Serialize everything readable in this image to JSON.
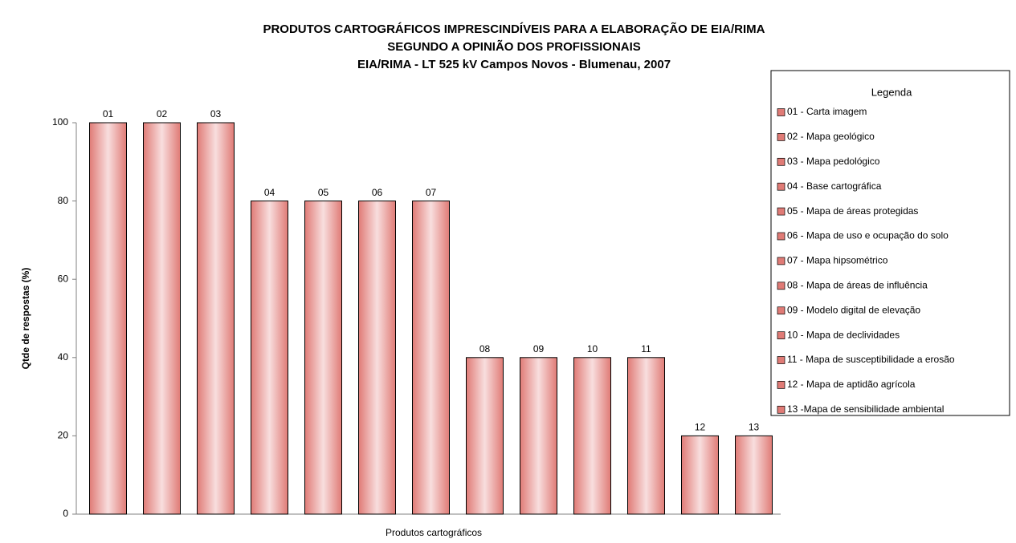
{
  "chart_data": {
    "type": "bar",
    "title": "PRODUTOS CARTOGRÁFICOS IMPRESCINDÍVEIS PARA A ELABORAÇÃO DE EIA/RIMA",
    "subtitle": "SEGUNDO A OPINIÃO DOS PROFISSIONAIS",
    "subtitle2": "EIA/RIMA - LT 525 kV Campos Novos - Blumenau, 2007",
    "y_label": "Qtde de respostas (%)",
    "x_label": "Produtos cartográficos",
    "categories": [
      "01",
      "02",
      "03",
      "04",
      "05",
      "06",
      "07",
      "08",
      "09",
      "10",
      "11",
      "12",
      "13"
    ],
    "values": [
      100,
      100,
      100,
      80,
      80,
      80,
      80,
      40,
      40,
      40,
      40,
      20,
      20
    ],
    "color": "#e07b76",
    "ylim": [
      0,
      100
    ],
    "yticks": [
      0,
      20,
      40,
      60,
      80,
      100
    ],
    "legend": {
      "title": "Legenda",
      "entries": [
        "01 - Carta imagem",
        "02 - Mapa geológico",
        "03 - Mapa pedológico",
        "04 - Base cartográfica",
        "05 - Mapa de áreas protegidas",
        "06 - Mapa de uso e ocupação do solo",
        "07 - Mapa hipsométrico",
        "08 - Mapa de áreas de influência",
        "09 - Modelo digital de elevação",
        "10 - Mapa de declividades",
        "11 - Mapa de susceptibilidade a erosão",
        "12 - Mapa de aptidão agrícola",
        "13 -Mapa de sensibilidade ambiental"
      ]
    }
  }
}
